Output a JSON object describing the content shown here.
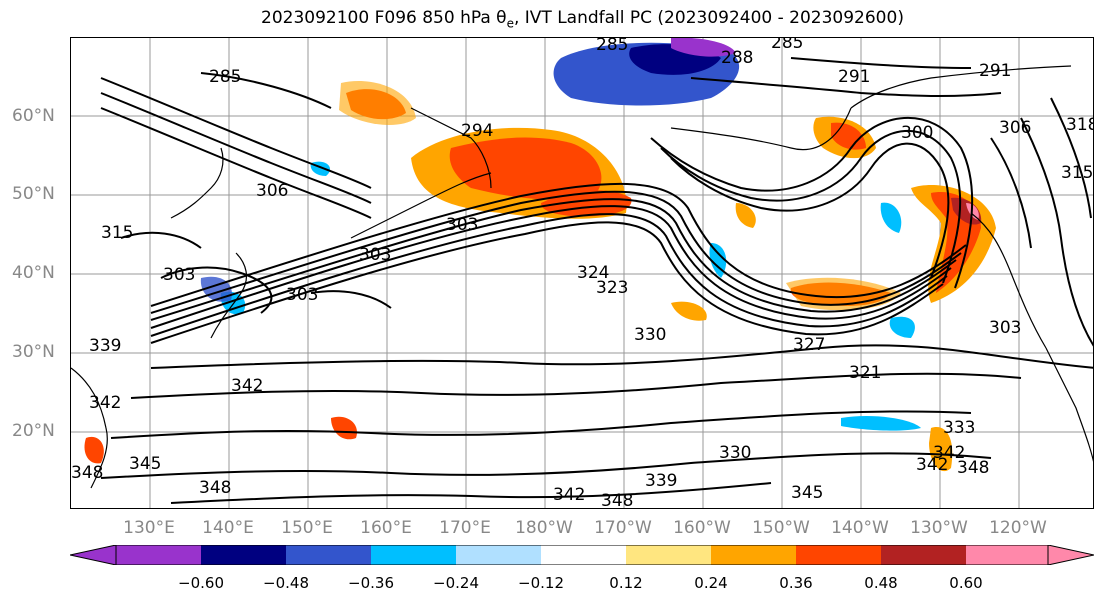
{
  "title": {
    "main": "2023092100 F096 850 hPa θ",
    "sub": "e",
    "rest": ", IVT Landfall PC (2023092400 - 2023092600)"
  },
  "lat_labels": [
    "60°N",
    "50°N",
    "40°N",
    "30°N",
    "20°N"
  ],
  "lon_labels": [
    "130°E",
    "140°E",
    "150°E",
    "160°E",
    "170°E",
    "180°W",
    "170°W",
    "160°W",
    "150°W",
    "140°W",
    "130°W",
    "120°W"
  ],
  "contour_labels": [
    "285",
    "285",
    "288",
    "285",
    "291",
    "291",
    "294",
    "300",
    "306",
    "306",
    "315",
    "318",
    "315",
    "303",
    "303",
    "303",
    "303",
    "324",
    "323",
    "330",
    "327",
    "339",
    "342",
    "342",
    "345",
    "348",
    "348",
    "342",
    "348",
    "339",
    "330",
    "345",
    "342",
    "321",
    "303",
    "333",
    "342",
    "348"
  ],
  "colorbar": {
    "ticks": [
      "−0.60",
      "−0.48",
      "−0.36",
      "−0.24",
      "−0.12",
      "0.12",
      "0.24",
      "0.36",
      "0.48",
      "0.60"
    ],
    "colors": [
      "#9933cc",
      "#000080",
      "#3355cc",
      "#00bfff",
      "#b0e0ff",
      "#ffffff",
      "#ffe680",
      "#ffa500",
      "#ff4500",
      "#b22222",
      "#ff88aa"
    ]
  }
}
